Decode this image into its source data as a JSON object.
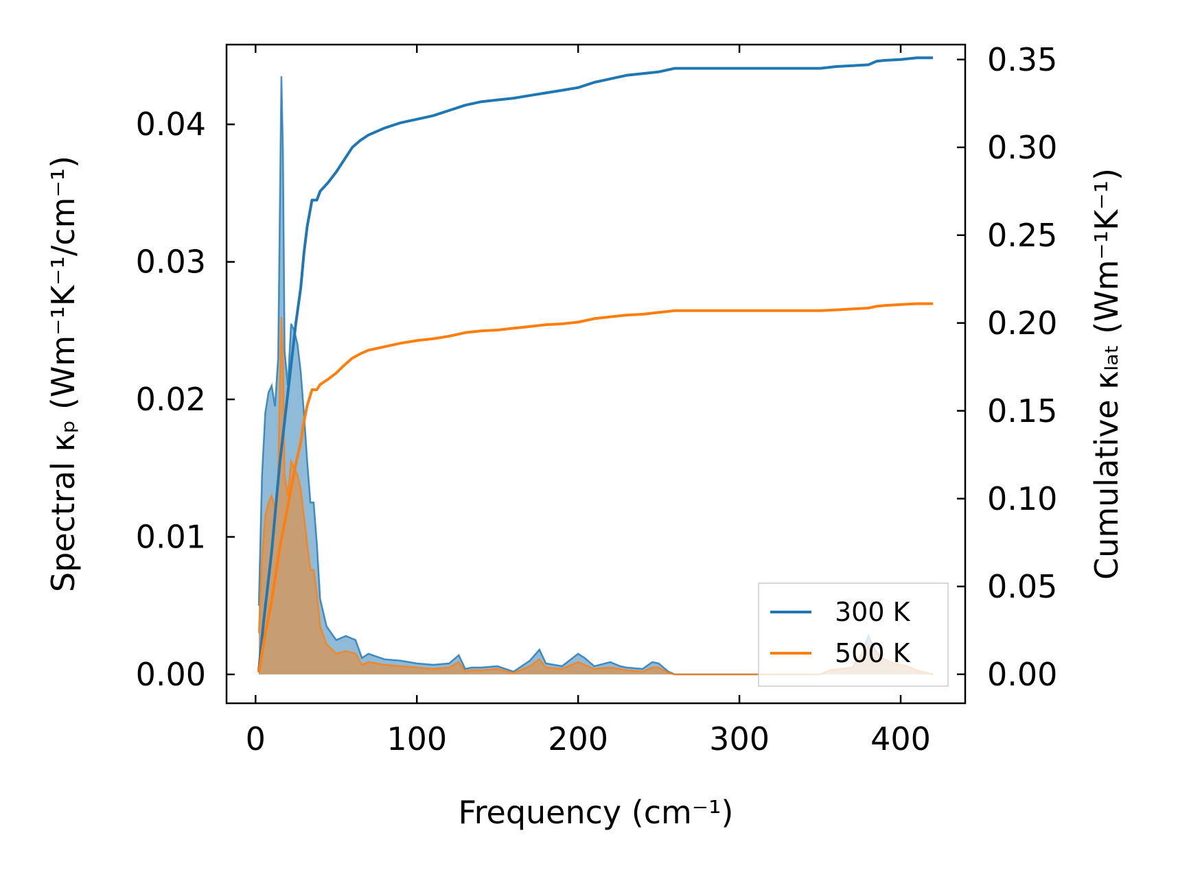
{
  "chart_data": {
    "type": "area",
    "title": "",
    "xlabel": "Frequency (cm⁻¹)",
    "ylabel_left": "Spectral κₚ (Wm⁻¹K⁻¹/cm⁻¹)",
    "ylabel_right": "Cumulative κₗₐₜ (Wm⁻¹K⁻¹)",
    "xlim": [
      -18,
      440
    ],
    "ylim_left": [
      -0.0021,
      0.0458
    ],
    "ylim_right": [
      -0.0165,
      0.3585
    ],
    "xticks": [
      0,
      100,
      200,
      300,
      400
    ],
    "xtick_labels": [
      "0",
      "100",
      "200",
      "300",
      "400"
    ],
    "yticks_left": [
      0.0,
      0.01,
      0.02,
      0.03,
      0.04
    ],
    "ytick_labels_left": [
      "0.00",
      "0.01",
      "0.02",
      "0.03",
      "0.04"
    ],
    "yticks_right": [
      0.0,
      0.05,
      0.1,
      0.15,
      0.2,
      0.25,
      0.3,
      0.35
    ],
    "ytick_labels_right": [
      "0.00",
      "0.05",
      "0.10",
      "0.15",
      "0.20",
      "0.25",
      "0.30",
      "0.35"
    ],
    "legend": {
      "position": "lower-right",
      "entries": [
        "300 K",
        "500 K"
      ]
    },
    "colors": {
      "300 K": "#1f77b4",
      "500 K": "#ff7f0e"
    },
    "spectral_series": [
      {
        "name": "300 K",
        "axis": "left",
        "x": [
          2,
          4,
          6,
          8,
          10,
          12,
          14,
          16,
          17,
          18,
          20,
          22,
          24,
          26,
          28,
          30,
          32,
          34,
          36,
          38,
          40,
          44,
          50,
          56,
          62,
          66,
          70,
          80,
          90,
          100,
          110,
          120,
          126,
          130,
          134,
          140,
          150,
          160,
          170,
          176,
          180,
          190,
          200,
          204,
          210,
          220,
          226,
          230,
          240,
          246,
          250,
          256,
          260,
          300,
          350,
          356,
          370,
          376,
          380,
          384,
          388,
          396,
          404,
          410,
          420
        ],
        "y": [
          0.005,
          0.0145,
          0.019,
          0.0205,
          0.021,
          0.0195,
          0.023,
          0.0435,
          0.038,
          0.0235,
          0.021,
          0.0255,
          0.025,
          0.024,
          0.022,
          0.019,
          0.0155,
          0.0125,
          0.0125,
          0.0095,
          0.0055,
          0.0035,
          0.0025,
          0.0028,
          0.0025,
          0.0012,
          0.0015,
          0.0011,
          0.001,
          0.0008,
          0.0007,
          0.0008,
          0.0014,
          0.0004,
          0.0005,
          0.0005,
          0.0006,
          0.0002,
          0.001,
          0.0018,
          0.0008,
          0.0006,
          0.0015,
          0.0012,
          0.0006,
          0.0009,
          0.0006,
          0.0005,
          0.0004,
          0.0009,
          0.0008,
          0.0002,
          0.0,
          0.0,
          0.0,
          0.0003,
          0.0005,
          0.0015,
          0.0028,
          0.0018,
          0.0012,
          0.0008,
          0.0006,
          0.0003,
          0.0
        ]
      },
      {
        "name": "500 K",
        "axis": "left",
        "x": [
          2,
          4,
          6,
          8,
          10,
          12,
          14,
          16,
          17,
          18,
          20,
          22,
          24,
          26,
          28,
          30,
          32,
          34,
          36,
          38,
          40,
          44,
          50,
          56,
          62,
          66,
          70,
          80,
          90,
          100,
          110,
          120,
          126,
          130,
          134,
          140,
          150,
          160,
          170,
          176,
          180,
          190,
          200,
          204,
          210,
          220,
          226,
          230,
          240,
          246,
          250,
          256,
          260,
          300,
          350,
          356,
          370,
          376,
          380,
          384,
          388,
          396,
          404,
          410,
          420
        ],
        "y": [
          0.003,
          0.0085,
          0.0115,
          0.0125,
          0.013,
          0.012,
          0.0145,
          0.026,
          0.023,
          0.0145,
          0.013,
          0.0155,
          0.015,
          0.0145,
          0.0135,
          0.0115,
          0.0095,
          0.0076,
          0.0076,
          0.0058,
          0.0035,
          0.0022,
          0.0015,
          0.0017,
          0.0015,
          0.0007,
          0.0009,
          0.0007,
          0.0006,
          0.0005,
          0.0004,
          0.0005,
          0.0009,
          0.0002,
          0.0003,
          0.0003,
          0.0004,
          0.0001,
          0.0006,
          0.0011,
          0.0005,
          0.0004,
          0.0009,
          0.0007,
          0.0004,
          0.0005,
          0.0004,
          0.0003,
          0.0002,
          0.0005,
          0.0005,
          0.0001,
          0.0,
          0.0,
          0.0,
          0.0003,
          0.0005,
          0.0015,
          0.0022,
          0.0016,
          0.0012,
          0.0008,
          0.0006,
          0.0003,
          0.0
        ]
      }
    ],
    "cumulative_series": [
      {
        "name": "300 K",
        "axis": "right",
        "x": [
          2,
          5,
          10,
          15,
          20,
          25,
          28,
          30,
          32,
          35,
          38,
          40,
          45,
          50,
          55,
          60,
          65,
          70,
          80,
          90,
          100,
          110,
          120,
          130,
          140,
          150,
          160,
          170,
          180,
          190,
          200,
          210,
          220,
          230,
          240,
          250,
          260,
          300,
          350,
          360,
          370,
          380,
          385,
          390,
          400,
          410,
          420
        ],
        "y": [
          0.002,
          0.03,
          0.07,
          0.12,
          0.16,
          0.2,
          0.22,
          0.24,
          0.255,
          0.27,
          0.27,
          0.275,
          0.28,
          0.286,
          0.293,
          0.3,
          0.304,
          0.307,
          0.311,
          0.314,
          0.316,
          0.318,
          0.321,
          0.324,
          0.326,
          0.327,
          0.328,
          0.3295,
          0.331,
          0.3325,
          0.334,
          0.337,
          0.339,
          0.341,
          0.342,
          0.343,
          0.345,
          0.345,
          0.345,
          0.346,
          0.3465,
          0.347,
          0.349,
          0.3495,
          0.35,
          0.351,
          0.351
        ]
      },
      {
        "name": "500 K",
        "axis": "right",
        "x": [
          2,
          5,
          10,
          15,
          20,
          25,
          28,
          30,
          32,
          35,
          38,
          40,
          45,
          50,
          55,
          60,
          65,
          70,
          80,
          90,
          100,
          110,
          120,
          130,
          140,
          150,
          160,
          170,
          180,
          190,
          200,
          210,
          220,
          230,
          240,
          250,
          260,
          300,
          350,
          360,
          370,
          380,
          385,
          390,
          400,
          410,
          420
        ],
        "y": [
          0.001,
          0.018,
          0.042,
          0.072,
          0.096,
          0.12,
          0.132,
          0.144,
          0.153,
          0.162,
          0.162,
          0.165,
          0.168,
          0.1715,
          0.176,
          0.18,
          0.1825,
          0.1845,
          0.1865,
          0.1885,
          0.19,
          0.191,
          0.1925,
          0.1945,
          0.1955,
          0.196,
          0.197,
          0.198,
          0.199,
          0.1995,
          0.2005,
          0.2025,
          0.2035,
          0.2045,
          0.205,
          0.206,
          0.207,
          0.207,
          0.207,
          0.2075,
          0.208,
          0.2085,
          0.2095,
          0.21,
          0.2105,
          0.211,
          0.211
        ]
      }
    ]
  }
}
